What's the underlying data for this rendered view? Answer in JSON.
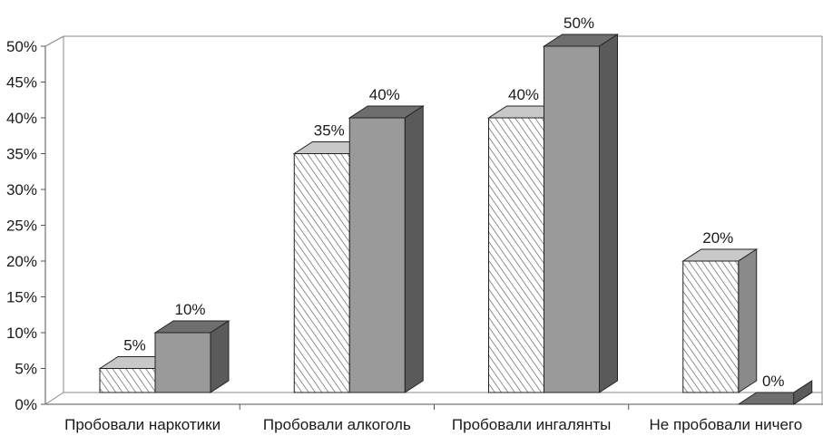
{
  "chart_data": {
    "type": "bar",
    "style": "3d-clustered-column",
    "categories": [
      "Пробовали наркотики",
      "Пробовали алкоголь",
      "Пробовали ингалянты",
      "Не пробовали ничего"
    ],
    "series": [
      {
        "values": [
          5,
          35,
          40,
          20
        ],
        "pattern": "hatched",
        "labels": [
          "5%",
          "35%",
          "40%",
          "20%"
        ]
      },
      {
        "values": [
          10,
          40,
          50,
          0
        ],
        "pattern": "solid-gray",
        "labels": [
          "10%",
          "40%",
          "50%",
          "0%"
        ]
      }
    ],
    "yticks": [
      "0%",
      "5%",
      "10%",
      "15%",
      "20%",
      "25%",
      "30%",
      "35%",
      "40%",
      "45%",
      "50%"
    ],
    "ylim": [
      0,
      50
    ],
    "grid": false,
    "legend": "none",
    "colors": {
      "hatch_fill": "#ffffff",
      "hatch_line": "#555555",
      "hatch_top": "#c8c8c8",
      "hatch_side": "#8a8a8a",
      "solid_front": "#9a9a9a",
      "solid_top": "#6e6e6e",
      "solid_side": "#5a5a5a",
      "outline": "#222222"
    }
  }
}
